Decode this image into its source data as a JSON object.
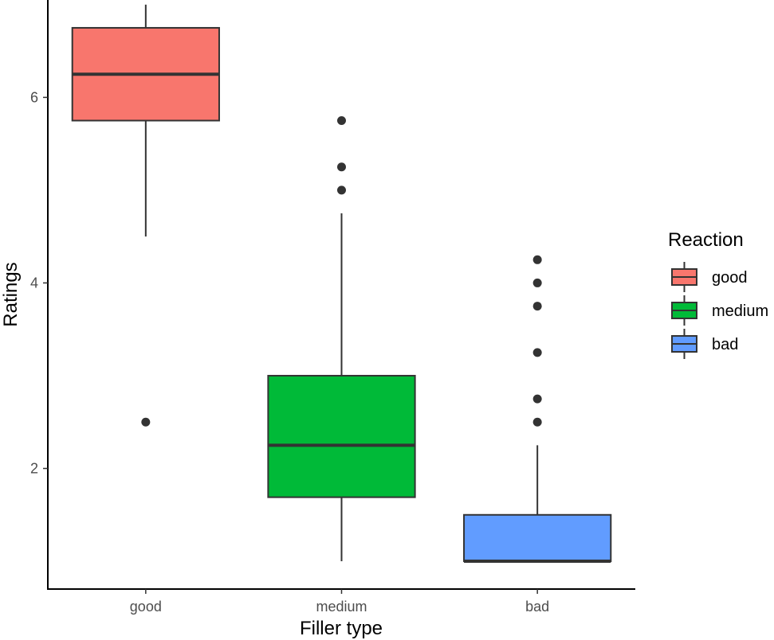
{
  "chart_data": {
    "type": "boxplot",
    "xlabel": "Filler type",
    "ylabel": "Ratings",
    "categories": [
      "good",
      "medium",
      "bad"
    ],
    "y_ticks": [
      2,
      4,
      6
    ],
    "ylim": [
      0.7,
      7.05
    ],
    "grid": false,
    "legend": {
      "title": "Reaction",
      "position": "right",
      "entries": [
        "good",
        "medium",
        "bad"
      ]
    },
    "boxes": [
      {
        "category": "good",
        "color": "#F8766D",
        "whisker_low": 4.5,
        "q1": 5.75,
        "median": 6.25,
        "q3": 6.75,
        "whisker_high": 7.0,
        "outliers": [
          2.5
        ]
      },
      {
        "category": "medium",
        "color": "#00BA38",
        "whisker_low": 1.0,
        "q1": 1.69,
        "median": 2.25,
        "q3": 3.0,
        "whisker_high": 4.75,
        "outliers": [
          5.0,
          5.25,
          5.75
        ]
      },
      {
        "category": "bad",
        "color": "#619CFF",
        "whisker_low": 1.0,
        "q1": 1.0,
        "median": 1.0,
        "q3": 1.5,
        "whisker_high": 2.25,
        "outliers": [
          2.5,
          2.75,
          3.25,
          3.75,
          4.0,
          4.25
        ]
      }
    ]
  }
}
